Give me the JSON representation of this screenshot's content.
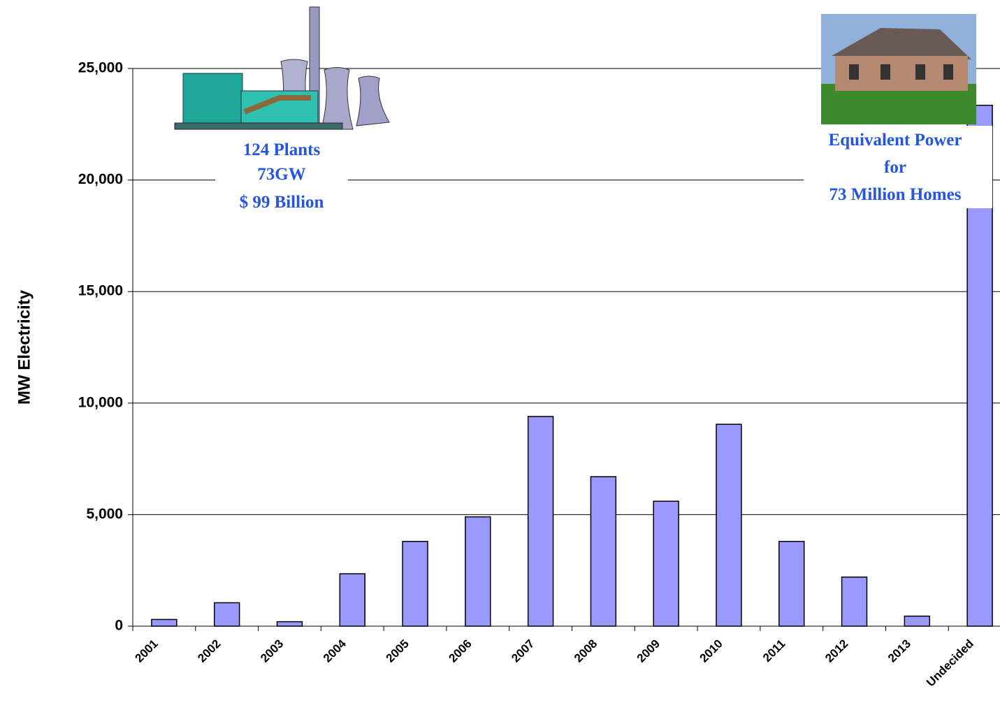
{
  "chart_data": {
    "type": "bar",
    "y_label": "MW Electricity",
    "categories": [
      "2001",
      "2002",
      "2003",
      "2004",
      "2005",
      "2006",
      "2007",
      "2008",
      "2009",
      "2010",
      "2011",
      "2012",
      "2013",
      "Undecided"
    ],
    "values": [
      300,
      1050,
      200,
      2350,
      3800,
      4900,
      9400,
      6700,
      5600,
      9050,
      3800,
      2200,
      450,
      23350
    ],
    "color": "#9999ff",
    "ylim": [
      0,
      25000
    ],
    "yticks": [
      0,
      {
        "value": 5000,
        "label": "5,000"
      },
      {
        "value": 10000,
        "label": "10,000"
      },
      {
        "value": 15000,
        "label": "15,000"
      },
      {
        "value": 20000,
        "label": "20,000"
      },
      {
        "value": 25000,
        "label": "25,000"
      }
    ],
    "grid": true,
    "annotations": [
      "124 Plants",
      "73GW",
      "$ 99 Billion",
      "Equivalent Power",
      "for",
      "73 Million Homes"
    ]
  }
}
